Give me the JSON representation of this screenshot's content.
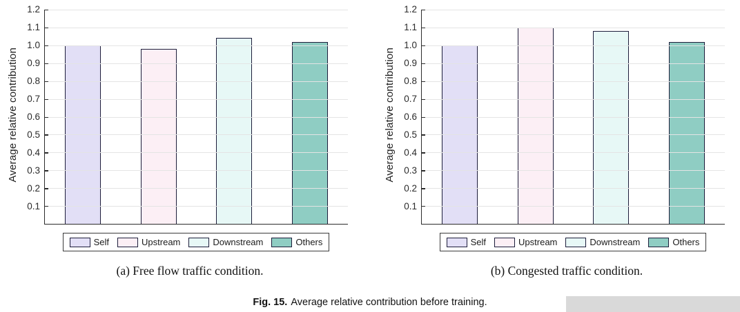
{
  "chart_data": [
    {
      "type": "bar",
      "title": "(a) Free flow traffic condition.",
      "categories": [
        "Self",
        "Upstream",
        "Downstream",
        "Others"
      ],
      "values": [
        1.0,
        0.98,
        1.04,
        1.02
      ],
      "xlabel": "",
      "ylabel": "Average relative contribution",
      "ylim": [
        0,
        1.2
      ],
      "ytick_labels": [
        "0.1",
        "0.2",
        "0.3",
        "0.4",
        "0.5",
        "0.6",
        "0.7",
        "0.8",
        "0.9",
        "1.0",
        "1.1",
        "1.2"
      ],
      "grid": true,
      "legend": [
        "Self",
        "Upstream",
        "Downstream",
        "Others"
      ],
      "legend_position": "bottom",
      "bar_colors": [
        "#e2dff6",
        "#fceff5",
        "#e7f8f6",
        "#8fcdc3"
      ],
      "bar_edge_color": "#1c1c3a"
    },
    {
      "type": "bar",
      "title": "(b) Congested traffic condition.",
      "categories": [
        "Self",
        "Upstream",
        "Downstream",
        "Others"
      ],
      "values": [
        1.0,
        1.1,
        1.08,
        1.02
      ],
      "xlabel": "",
      "ylabel": "Average relative contribution",
      "ylim": [
        0,
        1.2
      ],
      "ytick_labels": [
        "0.1",
        "0.2",
        "0.3",
        "0.4",
        "0.5",
        "0.6",
        "0.7",
        "0.8",
        "0.9",
        "1.0",
        "1.1",
        "1.2"
      ],
      "grid": true,
      "legend": [
        "Self",
        "Upstream",
        "Downstream",
        "Others"
      ],
      "legend_position": "bottom",
      "bar_colors": [
        "#e2dff6",
        "#fceff5",
        "#e7f8f6",
        "#8fcdc3"
      ],
      "bar_edge_color": "#1c1c3a"
    }
  ],
  "figure_caption": {
    "prefix": "Fig. 15.",
    "text": "Average relative contribution before training."
  }
}
